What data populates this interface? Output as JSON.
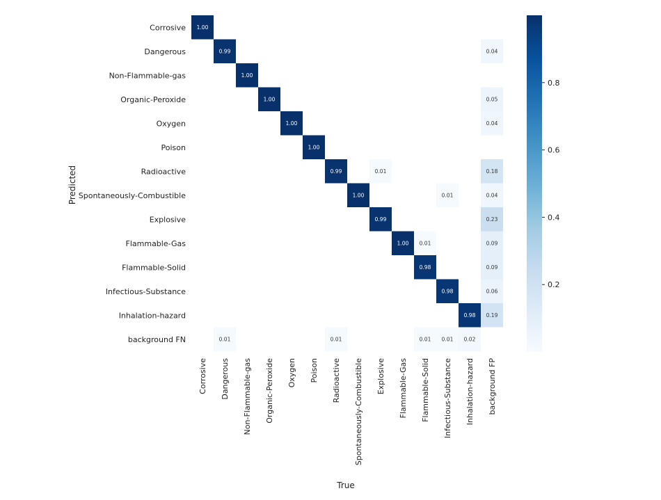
{
  "chart_data": {
    "type": "heatmap",
    "title": "",
    "xlabel": "True",
    "ylabel": "Predicted",
    "rows": [
      "Corrosive",
      "Dangerous",
      "Non-Flammable-gas",
      "Organic-Peroxide",
      "Oxygen",
      "Poison",
      "Radioactive",
      "Spontaneously-Combustible",
      "Explosive",
      "Flammable-Gas",
      "Flammable-Solid",
      "Infectious-Substance",
      "Inhalation-hazard",
      "background FN"
    ],
    "columns": [
      "Corrosive",
      "Dangerous",
      "Non-Flammable-gas",
      "Organic-Peroxide",
      "Oxygen",
      "Poison",
      "Radioactive",
      "Spontaneously-Combustible",
      "Explosive",
      "Flammable-Gas",
      "Flammable-Solid",
      "Infectious-Substance",
      "Inhalation-hazard",
      "background FP"
    ],
    "values": [
      [
        1.0,
        null,
        null,
        null,
        null,
        null,
        null,
        null,
        null,
        null,
        null,
        null,
        null,
        null
      ],
      [
        null,
        0.99,
        null,
        null,
        null,
        null,
        null,
        null,
        null,
        null,
        null,
        null,
        null,
        0.04
      ],
      [
        null,
        null,
        1.0,
        null,
        null,
        null,
        null,
        null,
        null,
        null,
        null,
        null,
        null,
        null
      ],
      [
        null,
        null,
        null,
        1.0,
        null,
        null,
        null,
        null,
        null,
        null,
        null,
        null,
        null,
        0.05
      ],
      [
        null,
        null,
        null,
        null,
        1.0,
        null,
        null,
        null,
        null,
        null,
        null,
        null,
        null,
        0.04
      ],
      [
        null,
        null,
        null,
        null,
        null,
        1.0,
        null,
        null,
        null,
        null,
        null,
        null,
        null,
        null
      ],
      [
        null,
        null,
        null,
        null,
        null,
        null,
        0.99,
        null,
        0.01,
        null,
        null,
        null,
        null,
        0.18
      ],
      [
        null,
        null,
        null,
        null,
        null,
        null,
        null,
        1.0,
        null,
        null,
        null,
        0.01,
        null,
        0.04
      ],
      [
        null,
        null,
        null,
        null,
        null,
        null,
        null,
        null,
        0.99,
        null,
        null,
        null,
        null,
        0.23
      ],
      [
        null,
        null,
        null,
        null,
        null,
        null,
        null,
        null,
        null,
        1.0,
        0.01,
        null,
        null,
        0.09
      ],
      [
        null,
        null,
        null,
        null,
        null,
        null,
        null,
        null,
        null,
        null,
        0.98,
        null,
        null,
        0.09
      ],
      [
        null,
        null,
        null,
        null,
        null,
        null,
        null,
        null,
        null,
        null,
        null,
        0.98,
        null,
        0.06
      ],
      [
        null,
        null,
        null,
        null,
        null,
        null,
        null,
        null,
        null,
        null,
        null,
        null,
        0.98,
        0.19
      ],
      [
        null,
        0.01,
        null,
        null,
        null,
        null,
        0.01,
        null,
        null,
        null,
        0.01,
        0.01,
        0.02,
        null
      ]
    ],
    "value_range": [
      0,
      1
    ],
    "colormap": "Blues",
    "colorbar": {
      "ticks": [
        0.2,
        0.4,
        0.6,
        0.8
      ],
      "tick_labels": [
        "0.2",
        "0.4",
        "0.6",
        "0.8"
      ]
    },
    "colors": {
      "low": "#f7fbff",
      "high": "#08306b",
      "light_text": "#ffffff",
      "dark_text": "#333333"
    }
  }
}
